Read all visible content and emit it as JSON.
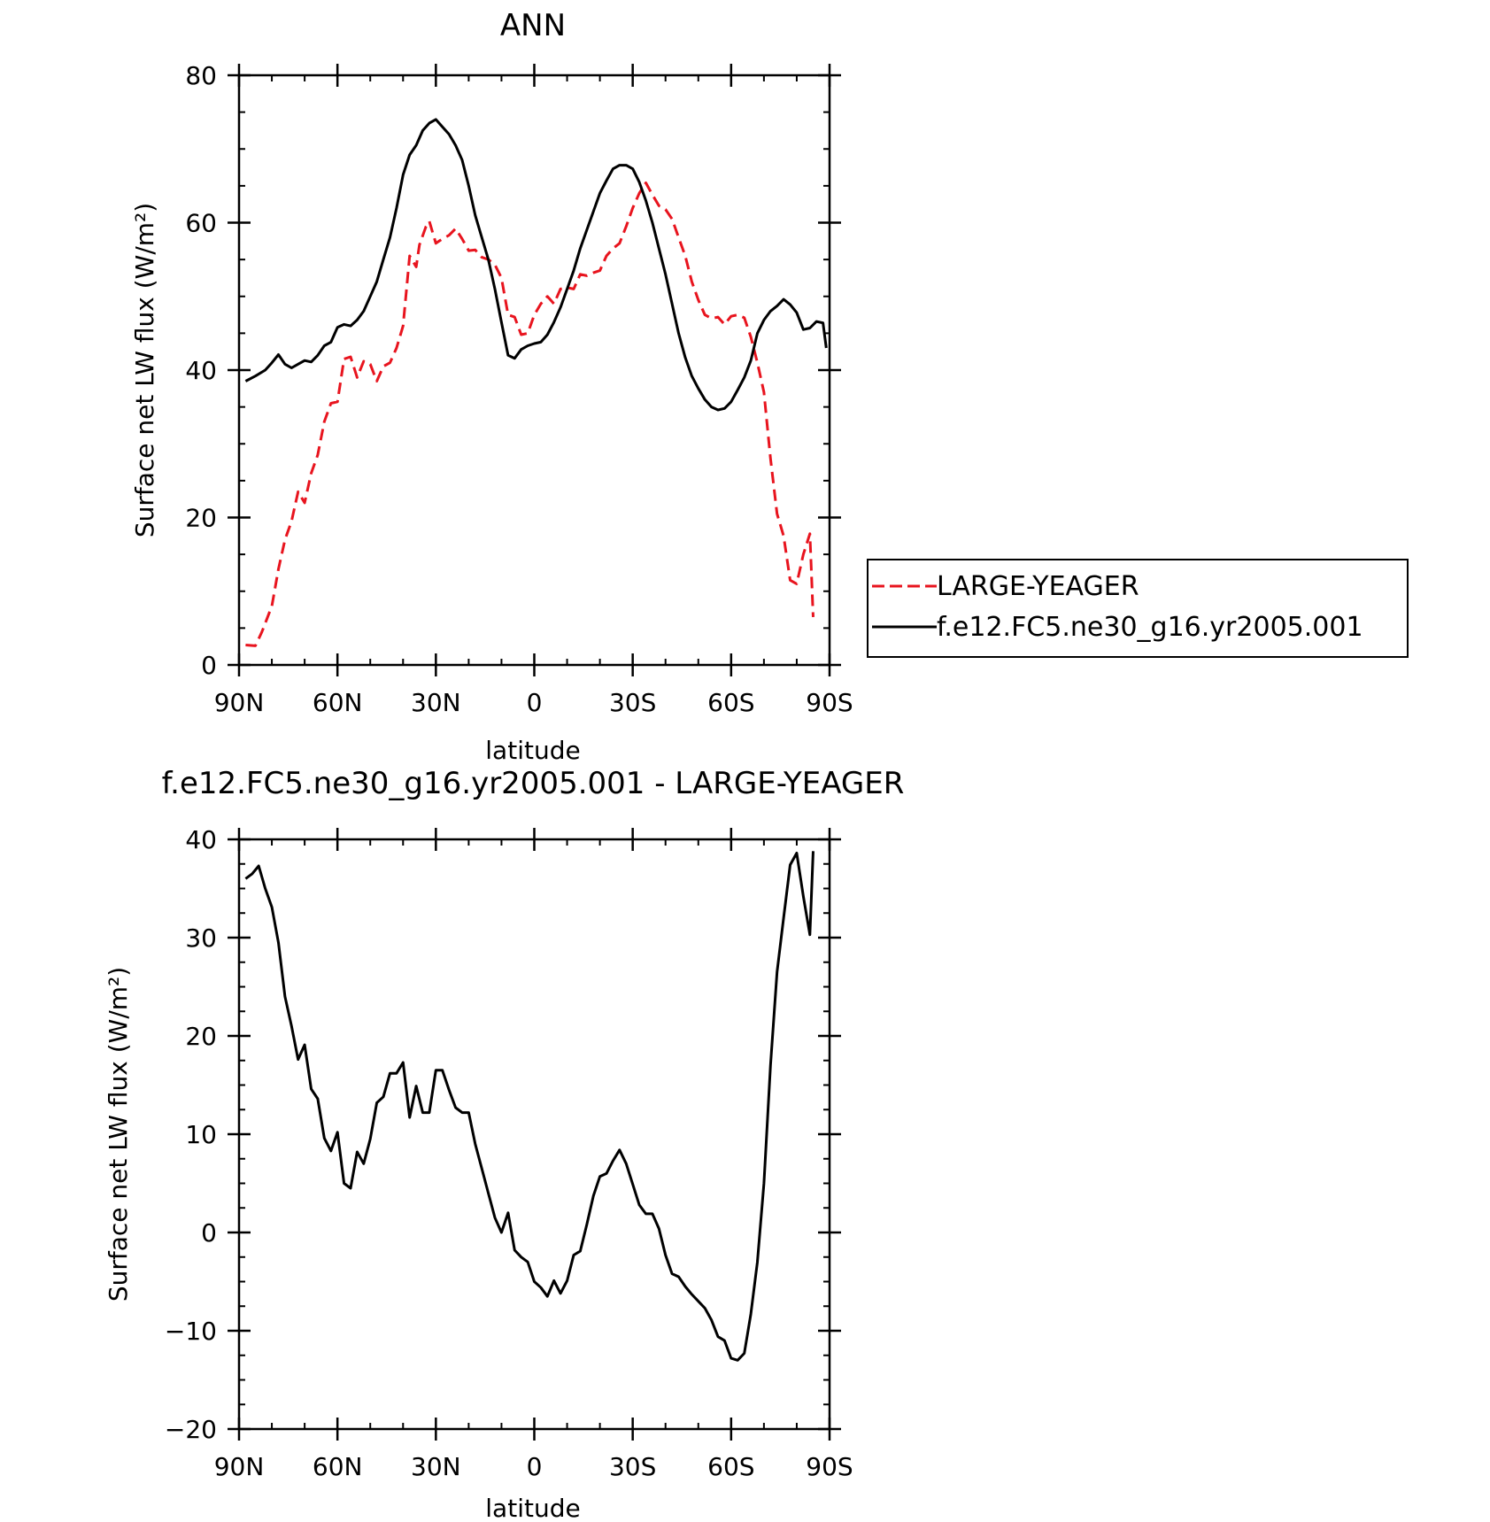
{
  "chart_data": [
    {
      "type": "line",
      "title": "ANN",
      "xlabel": "latitude",
      "ylabel": "Surface net LW flux (W/m²)",
      "xlim": [
        90,
        -90
      ],
      "ylim": [
        0,
        80
      ],
      "xticks": [
        90,
        60,
        30,
        0,
        -30,
        -60,
        -90
      ],
      "xtick_labels": [
        "90N",
        "60N",
        "30N",
        "0",
        "30S",
        "60S",
        "90S"
      ],
      "yticks": [
        0,
        20,
        40,
        60,
        80
      ],
      "ytick_labels": [
        "0",
        "20",
        "40",
        "60",
        "80"
      ],
      "legend": {
        "position": "right"
      },
      "series": [
        {
          "name": "LARGE-YEAGER",
          "color": "#e8141e",
          "dash": "dashed",
          "points": [
            [
              88,
              2.7
            ],
            [
              85,
              2.6
            ],
            [
              83,
              4.5
            ],
            [
              80,
              8
            ],
            [
              78,
              13
            ],
            [
              76,
              17
            ],
            [
              74,
              19.5
            ],
            [
              72,
              23.5
            ],
            [
              70,
              22
            ],
            [
              68,
              26
            ],
            [
              66,
              28.5
            ],
            [
              64,
              33
            ],
            [
              62,
              35.5
            ],
            [
              60,
              35.7
            ],
            [
              58,
              41.5
            ],
            [
              56,
              41.8
            ],
            [
              54,
              39
            ],
            [
              52,
              41.2
            ],
            [
              50,
              40.8
            ],
            [
              48,
              38.5
            ],
            [
              46,
              40.5
            ],
            [
              44,
              41
            ],
            [
              42,
              43
            ],
            [
              40,
              46
            ],
            [
              38,
              55.5
            ],
            [
              36,
              54
            ],
            [
              35,
              57
            ],
            [
              33,
              59.5
            ],
            [
              32,
              60.2
            ],
            [
              30,
              57.2
            ],
            [
              28,
              57.8
            ],
            [
              26,
              58.3
            ],
            [
              24,
              59.2
            ],
            [
              22,
              57.8
            ],
            [
              20,
              56.2
            ],
            [
              18,
              56.3
            ],
            [
              16,
              55.3
            ],
            [
              14,
              55
            ],
            [
              12,
              54.3
            ],
            [
              10,
              52.5
            ],
            [
              8,
              47.5
            ],
            [
              6,
              47.2
            ],
            [
              4,
              44.8
            ],
            [
              2,
              45
            ],
            [
              0,
              47.5
            ],
            [
              -2,
              49
            ],
            [
              -4,
              50
            ],
            [
              -6,
              49
            ],
            [
              -8,
              51
            ],
            [
              -10,
              51.2
            ],
            [
              -12,
              51
            ],
            [
              -14,
              53
            ],
            [
              -16,
              52.8
            ],
            [
              -18,
              53.2
            ],
            [
              -20,
              53.5
            ],
            [
              -22,
              55.5
            ],
            [
              -24,
              56.5
            ],
            [
              -26,
              57.2
            ],
            [
              -28,
              59.5
            ],
            [
              -30,
              62
            ],
            [
              -32,
              64
            ],
            [
              -34,
              65.4
            ],
            [
              -36,
              63.8
            ],
            [
              -38,
              62.3
            ],
            [
              -40,
              61.8
            ],
            [
              -42,
              60.5
            ],
            [
              -44,
              58
            ],
            [
              -46,
              55.5
            ],
            [
              -48,
              52
            ],
            [
              -50,
              49.5
            ],
            [
              -52,
              47.5
            ],
            [
              -54,
              47
            ],
            [
              -56,
              47.2
            ],
            [
              -58,
              46.2
            ],
            [
              -60,
              47.3
            ],
            [
              -62,
              47.5
            ],
            [
              -64,
              47.1
            ],
            [
              -66,
              44.5
            ],
            [
              -68,
              41
            ],
            [
              -70,
              37
            ],
            [
              -72,
              28
            ],
            [
              -74,
              20.5
            ],
            [
              -76,
              17.5
            ],
            [
              -78,
              11.5
            ],
            [
              -80,
              11
            ],
            [
              -82,
              15
            ],
            [
              -84,
              17.8
            ],
            [
              -85,
              6.5
            ]
          ]
        },
        {
          "name": "f.e12.FC5.ne30_g16.yr2005.001",
          "color": "#000000",
          "dash": "solid",
          "points": [
            [
              88,
              38.5
            ],
            [
              85,
              39.2
            ],
            [
              82,
              40
            ],
            [
              80,
              41
            ],
            [
              78,
              42.1
            ],
            [
              76,
              40.8
            ],
            [
              74,
              40.3
            ],
            [
              72,
              40.8
            ],
            [
              70,
              41.3
            ],
            [
              68,
              41.1
            ],
            [
              66,
              42
            ],
            [
              64,
              43.3
            ],
            [
              62,
              43.8
            ],
            [
              60,
              45.8
            ],
            [
              58,
              46.2
            ],
            [
              56,
              46
            ],
            [
              54,
              46.8
            ],
            [
              52,
              48
            ],
            [
              50,
              50
            ],
            [
              48,
              52
            ],
            [
              46,
              55
            ],
            [
              44,
              58
            ],
            [
              42,
              62
            ],
            [
              40,
              66.5
            ],
            [
              38,
              69.2
            ],
            [
              36,
              70.5
            ],
            [
              34,
              72.5
            ],
            [
              32,
              73.5
            ],
            [
              30,
              74
            ],
            [
              28,
              73
            ],
            [
              26,
              72
            ],
            [
              24,
              70.5
            ],
            [
              22,
              68.5
            ],
            [
              20,
              65
            ],
            [
              18,
              61
            ],
            [
              16,
              58
            ],
            [
              14,
              55
            ],
            [
              12,
              51
            ],
            [
              10,
              46.5
            ],
            [
              8,
              42
            ],
            [
              6,
              41.6
            ],
            [
              4,
              42.8
            ],
            [
              2,
              43.3
            ],
            [
              0,
              43.6
            ],
            [
              -2,
              43.8
            ],
            [
              -4,
              44.8
            ],
            [
              -6,
              46.5
            ],
            [
              -8,
              48.5
            ],
            [
              -10,
              51
            ],
            [
              -12,
              53.5
            ],
            [
              -14,
              56.5
            ],
            [
              -16,
              59
            ],
            [
              -18,
              61.5
            ],
            [
              -20,
              64
            ],
            [
              -22,
              65.7
            ],
            [
              -24,
              67.3
            ],
            [
              -26,
              67.8
            ],
            [
              -28,
              67.8
            ],
            [
              -30,
              67.3
            ],
            [
              -32,
              65.5
            ],
            [
              -34,
              63
            ],
            [
              -36,
              60
            ],
            [
              -38,
              56.5
            ],
            [
              -40,
              53
            ],
            [
              -42,
              49
            ],
            [
              -44,
              45
            ],
            [
              -46,
              41.7
            ],
            [
              -48,
              39.2
            ],
            [
              -50,
              37.5
            ],
            [
              -52,
              36
            ],
            [
              -54,
              35
            ],
            [
              -56,
              34.6
            ],
            [
              -58,
              34.8
            ],
            [
              -60,
              35.7
            ],
            [
              -62,
              37.3
            ],
            [
              -64,
              39
            ],
            [
              -66,
              41.3
            ],
            [
              -68,
              45
            ],
            [
              -70,
              46.8
            ],
            [
              -72,
              48
            ],
            [
              -74,
              48.7
            ],
            [
              -76,
              49.6
            ],
            [
              -78,
              48.9
            ],
            [
              -80,
              47.8
            ],
            [
              -82,
              45.5
            ],
            [
              -84,
              45.7
            ],
            [
              -86,
              46.6
            ],
            [
              -88,
              46.4
            ],
            [
              -89,
              43
            ]
          ]
        }
      ]
    },
    {
      "type": "line",
      "title": "f.e12.FC5.ne30_g16.yr2005.001 - LARGE-YEAGER",
      "xlabel": "latitude",
      "ylabel": "Surface net LW flux (W/m²)",
      "xlim": [
        90,
        -90
      ],
      "ylim": [
        -20,
        40
      ],
      "xticks": [
        90,
        60,
        30,
        0,
        -30,
        -60,
        -90
      ],
      "xtick_labels": [
        "90N",
        "60N",
        "30N",
        "0",
        "30S",
        "60S",
        "90S"
      ],
      "yticks": [
        -20,
        -10,
        0,
        10,
        20,
        30,
        40
      ],
      "ytick_labels": [
        "−20",
        "−10",
        "0",
        "10",
        "20",
        "30",
        "40"
      ],
      "series": [
        {
          "color": "#000000",
          "dash": "solid",
          "points": [
            [
              88,
              36
            ],
            [
              86,
              36.5
            ],
            [
              84,
              37.3
            ],
            [
              82,
              35
            ],
            [
              80,
              33.1
            ],
            [
              78,
              29.5
            ],
            [
              76,
              24
            ],
            [
              74,
              21
            ],
            [
              72,
              17.6
            ],
            [
              70,
              19.1
            ],
            [
              68,
              14.6
            ],
            [
              66,
              13.6
            ],
            [
              64,
              9.6
            ],
            [
              62,
              8.3
            ],
            [
              60,
              10.2
            ],
            [
              58,
              5
            ],
            [
              56,
              4.5
            ],
            [
              54,
              8.2
            ],
            [
              52,
              7
            ],
            [
              50,
              9.5
            ],
            [
              48,
              13.2
            ],
            [
              46,
              13.8
            ],
            [
              44,
              16.2
            ],
            [
              42,
              16.2
            ],
            [
              40,
              17.3
            ],
            [
              38,
              11.7
            ],
            [
              36,
              14.9
            ],
            [
              34,
              12.2
            ],
            [
              32,
              12.2
            ],
            [
              30,
              16.5
            ],
            [
              28,
              16.5
            ],
            [
              26,
              14.5
            ],
            [
              24,
              12.7
            ],
            [
              22,
              12.2
            ],
            [
              20,
              12.2
            ],
            [
              18,
              9
            ],
            [
              16,
              6.5
            ],
            [
              14,
              4
            ],
            [
              12,
              1.5
            ],
            [
              10,
              0
            ],
            [
              8,
              2
            ],
            [
              6,
              -1.8
            ],
            [
              4,
              -2.5
            ],
            [
              2,
              -3
            ],
            [
              0,
              -5
            ],
            [
              -2,
              -5.6
            ],
            [
              -4,
              -6.5
            ],
            [
              -6,
              -4.9
            ],
            [
              -8,
              -6.2
            ],
            [
              -10,
              -4.9
            ],
            [
              -12,
              -2.3
            ],
            [
              -14,
              -1.9
            ],
            [
              -16,
              0.8
            ],
            [
              -18,
              3.7
            ],
            [
              -20,
              5.7
            ],
            [
              -22,
              6
            ],
            [
              -24,
              7.3
            ],
            [
              -26,
              8.4
            ],
            [
              -28,
              7
            ],
            [
              -30,
              4.9
            ],
            [
              -32,
              2.8
            ],
            [
              -34,
              1.9
            ],
            [
              -36,
              1.9
            ],
            [
              -38,
              0.4
            ],
            [
              -40,
              -2.3
            ],
            [
              -42,
              -4.2
            ],
            [
              -44,
              -4.5
            ],
            [
              -46,
              -5.5
            ],
            [
              -48,
              -6.3
            ],
            [
              -50,
              -7
            ],
            [
              -52,
              -7.7
            ],
            [
              -54,
              -8.9
            ],
            [
              -56,
              -10.6
            ],
            [
              -58,
              -11
            ],
            [
              -60,
              -12.8
            ],
            [
              -62,
              -13
            ],
            [
              -64,
              -12.3
            ],
            [
              -66,
              -8.3
            ],
            [
              -68,
              -3
            ],
            [
              -70,
              5
            ],
            [
              -72,
              17
            ],
            [
              -74,
              26.5
            ],
            [
              -76,
              32
            ],
            [
              -78,
              37.4
            ],
            [
              -80,
              38.6
            ],
            [
              -82,
              34.2
            ],
            [
              -84,
              30.3
            ],
            [
              -85,
              38.8
            ]
          ]
        }
      ]
    }
  ]
}
